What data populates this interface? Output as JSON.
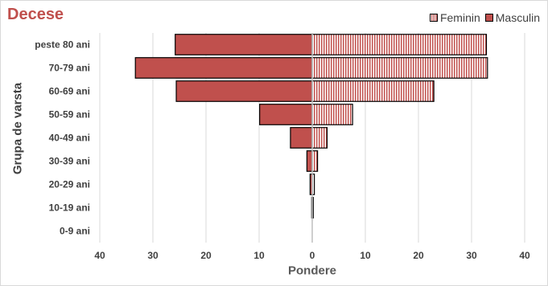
{
  "chart_data": {
    "type": "bar",
    "orientation": "horizontal",
    "style": "population-pyramid",
    "title": "Decese",
    "xlabel": "Pondere",
    "ylabel": "Grupa de varsta",
    "categories": [
      "peste 80 ani",
      "70-79 ani",
      "60-69 ani",
      "50-59 ani",
      "40-49 ani",
      "30-39 ani",
      "20-29 ani",
      "10-19 ani",
      "0-9 ani"
    ],
    "series": [
      {
        "name": "Feminin",
        "side": "right",
        "values": [
          32.8,
          33.0,
          22.9,
          7.6,
          2.8,
          1.0,
          0.4,
          0.2,
          0.0
        ]
      },
      {
        "name": "Masculin",
        "side": "left",
        "values": [
          25.8,
          33.3,
          25.6,
          9.9,
          4.1,
          1.0,
          0.4,
          0.1,
          0.0
        ]
      }
    ],
    "xlim": [
      -40,
      40
    ],
    "xticks": [
      -40,
      -30,
      -20,
      -10,
      0,
      10,
      20,
      30,
      40
    ],
    "xtick_labels": [
      "40",
      "30",
      "20",
      "10",
      "0",
      "10",
      "20",
      "30",
      "40"
    ],
    "grid": "vertical",
    "legend_position": "top-right",
    "colors": {
      "masculin": "#c0504d",
      "feminin_stripe": "#c0504d",
      "feminin_bg": "#ffffff",
      "border": "#000000",
      "gridline": "#d9d9d9"
    }
  }
}
